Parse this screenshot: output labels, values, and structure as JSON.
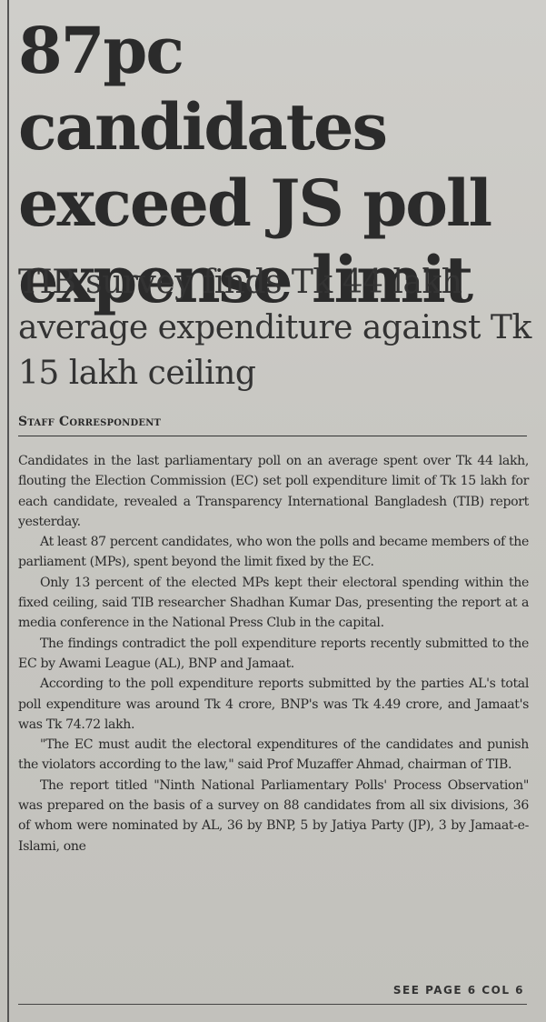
{
  "article": {
    "headline": "87pc candidates exceed JS poll expense limit",
    "subheadline": "TIB survey finds Tk 44 lakh average expenditure against Tk 15 lakh ceiling",
    "byline": "Staff Correspondent",
    "paragraphs": [
      "Candidates in the last parliamentary poll on an average spent over Tk 44 lakh, flouting the Election Commission (EC) set poll expenditure limit of Tk 15 lakh for each candidate, revealed a Transparency International Bangladesh (TIB) report yesterday.",
      "At least 87 percent candidates, who won the polls and became members of the parliament (MPs), spent beyond the limit fixed by the EC.",
      "Only 13 percent of the elected MPs kept their electoral spending within the fixed ceiling, said TIB researcher Shadhan Kumar Das, presenting the report at a media conference in the National Press Club in the capital.",
      "The findings contradict the poll expenditure reports recently submitted to the EC by Awami League (AL), BNP and Jamaat.",
      "According to the poll expenditure reports submitted by the parties AL's total poll expenditure was around Tk 4 crore, BNP's was Tk 4.49 crore, and Jamaat's was Tk 74.72 lakh.",
      "\"The EC must audit the electoral expenditures of the candidates and punish the violators according to the law,\" said Prof Muzaffer Ahmad, chairman of TIB.",
      "The report titled \"Ninth National Parliamentary Polls' Process Observation\" was prepared on the basis of a survey on 88 candidates from all six divisions, 36 of whom were nominated by AL, 36 by BNP, 5 by Jatiya Party (JP), 3 by Jamaat-e-Islami, one"
    ],
    "continuation": "SEE PAGE 6 COL 6"
  }
}
